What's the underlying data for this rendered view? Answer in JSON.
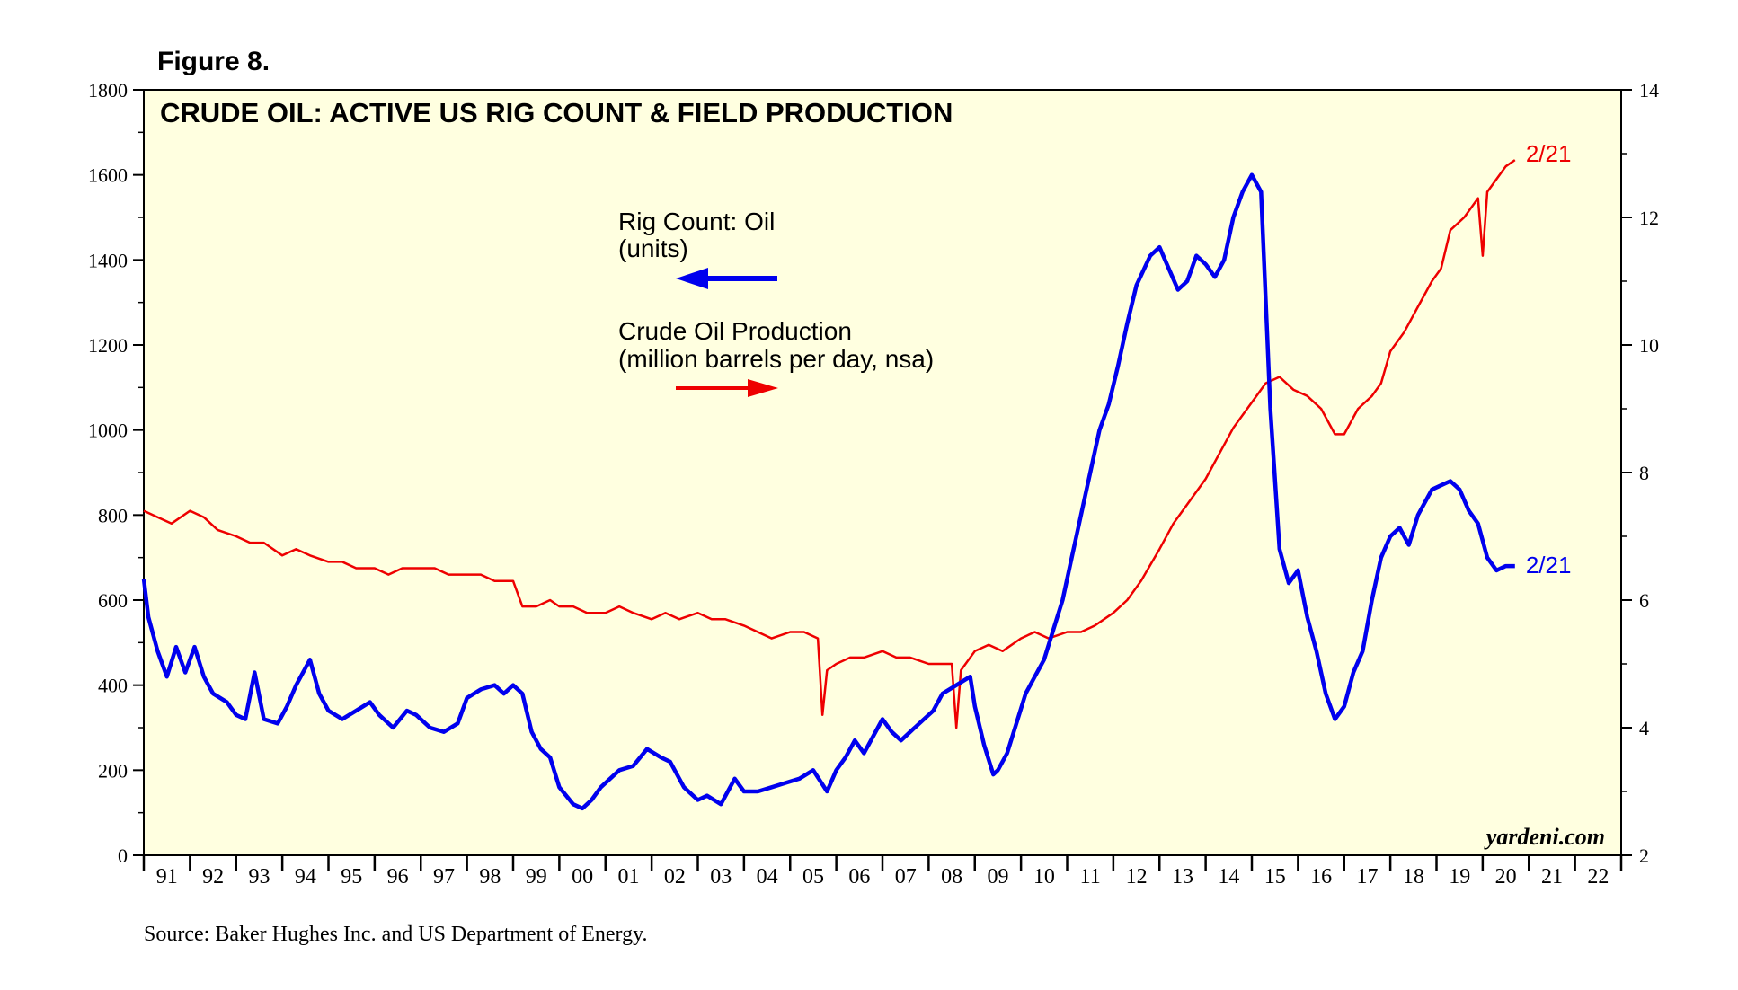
{
  "figure_label": "Figure 8.",
  "colors": {
    "rig_count": "#0000ee",
    "production": "#ee0000",
    "plot_bg": "#ffffe0"
  },
  "chart_data": {
    "type": "line",
    "title": "CRUDE OIL: ACTIVE US RIG COUNT & FIELD PRODUCTION",
    "xlim": [
      1991,
      2023
    ],
    "x_ticks": [
      "91",
      "92",
      "93",
      "94",
      "95",
      "96",
      "97",
      "98",
      "99",
      "00",
      "01",
      "02",
      "03",
      "04",
      "05",
      "06",
      "07",
      "08",
      "09",
      "10",
      "11",
      "12",
      "13",
      "14",
      "15",
      "16",
      "17",
      "18",
      "19",
      "20",
      "21",
      "22"
    ],
    "y_left": {
      "label": "Rig Count: Oil (units)",
      "lim": [
        0,
        1800
      ],
      "ticks": [
        0,
        200,
        400,
        600,
        800,
        1000,
        1200,
        1400,
        1600,
        1800
      ]
    },
    "y_right": {
      "label": "Crude Oil Production (million barrels per day, nsa)",
      "lim": [
        2,
        14
      ],
      "ticks": [
        2,
        4,
        6,
        8,
        10,
        12,
        14
      ]
    },
    "series": [
      {
        "name": "Rig Count: Oil",
        "units": "(units)",
        "axis": "left",
        "end_label": "2/21",
        "points": [
          [
            1991.0,
            650
          ],
          [
            1991.1,
            560
          ],
          [
            1991.3,
            480
          ],
          [
            1991.5,
            420
          ],
          [
            1991.7,
            490
          ],
          [
            1991.9,
            430
          ],
          [
            1992.1,
            490
          ],
          [
            1992.3,
            420
          ],
          [
            1992.5,
            380
          ],
          [
            1992.8,
            360
          ],
          [
            1993.0,
            330
          ],
          [
            1993.2,
            320
          ],
          [
            1993.4,
            430
          ],
          [
            1993.6,
            320
          ],
          [
            1993.9,
            310
          ],
          [
            1994.1,
            350
          ],
          [
            1994.3,
            400
          ],
          [
            1994.6,
            460
          ],
          [
            1994.8,
            380
          ],
          [
            1995.0,
            340
          ],
          [
            1995.3,
            320
          ],
          [
            1995.6,
            340
          ],
          [
            1995.9,
            360
          ],
          [
            1996.1,
            330
          ],
          [
            1996.4,
            300
          ],
          [
            1996.7,
            340
          ],
          [
            1996.9,
            330
          ],
          [
            1997.2,
            300
          ],
          [
            1997.5,
            290
          ],
          [
            1997.8,
            310
          ],
          [
            1998.0,
            370
          ],
          [
            1998.3,
            390
          ],
          [
            1998.6,
            400
          ],
          [
            1998.8,
            380
          ],
          [
            1999.0,
            400
          ],
          [
            1999.2,
            380
          ],
          [
            1999.4,
            290
          ],
          [
            1999.6,
            250
          ],
          [
            1999.8,
            230
          ],
          [
            2000.0,
            160
          ],
          [
            2000.3,
            120
          ],
          [
            2000.5,
            110
          ],
          [
            2000.7,
            130
          ],
          [
            2000.9,
            160
          ],
          [
            2001.1,
            180
          ],
          [
            2001.3,
            200
          ],
          [
            2001.6,
            210
          ],
          [
            2001.9,
            250
          ],
          [
            2002.2,
            230
          ],
          [
            2002.4,
            220
          ],
          [
            2002.7,
            160
          ],
          [
            2003.0,
            130
          ],
          [
            2003.2,
            140
          ],
          [
            2003.5,
            120
          ],
          [
            2003.8,
            180
          ],
          [
            2004.0,
            150
          ],
          [
            2004.3,
            150
          ],
          [
            2004.6,
            160
          ],
          [
            2004.9,
            170
          ],
          [
            2005.2,
            180
          ],
          [
            2005.5,
            200
          ],
          [
            2005.8,
            150
          ],
          [
            2006.0,
            200
          ],
          [
            2006.2,
            230
          ],
          [
            2006.4,
            270
          ],
          [
            2006.6,
            240
          ],
          [
            2006.8,
            280
          ],
          [
            2007.0,
            320
          ],
          [
            2007.2,
            290
          ],
          [
            2007.4,
            270
          ],
          [
            2007.6,
            290
          ],
          [
            2007.9,
            320
          ],
          [
            2008.1,
            340
          ],
          [
            2008.3,
            380
          ],
          [
            2008.6,
            400
          ],
          [
            2008.9,
            420
          ],
          [
            2009.0,
            350
          ],
          [
            2009.2,
            260
          ],
          [
            2009.4,
            190
          ],
          [
            2009.5,
            200
          ],
          [
            2009.7,
            240
          ],
          [
            2009.9,
            310
          ],
          [
            2010.1,
            380
          ],
          [
            2010.3,
            420
          ],
          [
            2010.5,
            460
          ],
          [
            2010.7,
            530
          ],
          [
            2010.9,
            600
          ],
          [
            2011.1,
            700
          ],
          [
            2011.3,
            800
          ],
          [
            2011.5,
            900
          ],
          [
            2011.7,
            1000
          ],
          [
            2011.9,
            1060
          ],
          [
            2012.1,
            1150
          ],
          [
            2012.3,
            1250
          ],
          [
            2012.5,
            1340
          ],
          [
            2012.8,
            1410
          ],
          [
            2013.0,
            1430
          ],
          [
            2013.2,
            1380
          ],
          [
            2013.4,
            1330
          ],
          [
            2013.6,
            1350
          ],
          [
            2013.8,
            1410
          ],
          [
            2014.0,
            1390
          ],
          [
            2014.2,
            1360
          ],
          [
            2014.4,
            1400
          ],
          [
            2014.6,
            1500
          ],
          [
            2014.8,
            1560
          ],
          [
            2015.0,
            1600
          ],
          [
            2015.2,
            1560
          ],
          [
            2015.4,
            1050
          ],
          [
            2015.6,
            720
          ],
          [
            2015.8,
            640
          ],
          [
            2016.0,
            670
          ],
          [
            2016.2,
            560
          ],
          [
            2016.4,
            480
          ],
          [
            2016.6,
            380
          ],
          [
            2016.8,
            320
          ],
          [
            2017.0,
            350
          ],
          [
            2017.2,
            430
          ],
          [
            2017.4,
            480
          ],
          [
            2017.6,
            600
          ],
          [
            2017.8,
            700
          ],
          [
            2018.0,
            750
          ],
          [
            2018.2,
            770
          ],
          [
            2018.4,
            730
          ],
          [
            2018.6,
            800
          ],
          [
            2018.9,
            860
          ],
          [
            2019.1,
            870
          ],
          [
            2019.3,
            880
          ],
          [
            2019.5,
            860
          ],
          [
            2019.7,
            810
          ],
          [
            2019.9,
            780
          ],
          [
            2020.1,
            700
          ],
          [
            2020.3,
            670
          ],
          [
            2020.5,
            680
          ],
          [
            2020.7,
            680
          ]
        ]
      },
      {
        "name": "Crude Oil Production",
        "units": "(million barrels per day, nsa)",
        "axis": "right",
        "end_label": "2/21",
        "points": [
          [
            1991.0,
            7.4
          ],
          [
            1991.3,
            7.3
          ],
          [
            1991.6,
            7.2
          ],
          [
            1992.0,
            7.4
          ],
          [
            1992.3,
            7.3
          ],
          [
            1992.6,
            7.1
          ],
          [
            1993.0,
            7.0
          ],
          [
            1993.3,
            6.9
          ],
          [
            1993.6,
            6.9
          ],
          [
            1994.0,
            6.7
          ],
          [
            1994.3,
            6.8
          ],
          [
            1994.6,
            6.7
          ],
          [
            1995.0,
            6.6
          ],
          [
            1995.3,
            6.6
          ],
          [
            1995.6,
            6.5
          ],
          [
            1996.0,
            6.5
          ],
          [
            1996.3,
            6.4
          ],
          [
            1996.6,
            6.5
          ],
          [
            1997.0,
            6.5
          ],
          [
            1997.3,
            6.5
          ],
          [
            1997.6,
            6.4
          ],
          [
            1998.0,
            6.4
          ],
          [
            1998.3,
            6.4
          ],
          [
            1998.6,
            6.3
          ],
          [
            1999.0,
            6.3
          ],
          [
            1999.2,
            5.9
          ],
          [
            1999.5,
            5.9
          ],
          [
            1999.8,
            6.0
          ],
          [
            2000.0,
            5.9
          ],
          [
            2000.3,
            5.9
          ],
          [
            2000.6,
            5.8
          ],
          [
            2001.0,
            5.8
          ],
          [
            2001.3,
            5.9
          ],
          [
            2001.6,
            5.8
          ],
          [
            2002.0,
            5.7
          ],
          [
            2002.3,
            5.8
          ],
          [
            2002.6,
            5.7
          ],
          [
            2003.0,
            5.8
          ],
          [
            2003.3,
            5.7
          ],
          [
            2003.6,
            5.7
          ],
          [
            2004.0,
            5.6
          ],
          [
            2004.3,
            5.5
          ],
          [
            2004.6,
            5.4
          ],
          [
            2005.0,
            5.5
          ],
          [
            2005.3,
            5.5
          ],
          [
            2005.6,
            5.4
          ],
          [
            2005.7,
            4.2
          ],
          [
            2005.8,
            4.9
          ],
          [
            2006.0,
            5.0
          ],
          [
            2006.3,
            5.1
          ],
          [
            2006.6,
            5.1
          ],
          [
            2007.0,
            5.2
          ],
          [
            2007.3,
            5.1
          ],
          [
            2007.6,
            5.1
          ],
          [
            2008.0,
            5.0
          ],
          [
            2008.3,
            5.0
          ],
          [
            2008.5,
            5.0
          ],
          [
            2008.6,
            4.0
          ],
          [
            2008.7,
            4.9
          ],
          [
            2009.0,
            5.2
          ],
          [
            2009.3,
            5.3
          ],
          [
            2009.6,
            5.2
          ],
          [
            2010.0,
            5.4
          ],
          [
            2010.3,
            5.5
          ],
          [
            2010.6,
            5.4
          ],
          [
            2011.0,
            5.5
          ],
          [
            2011.3,
            5.5
          ],
          [
            2011.6,
            5.6
          ],
          [
            2012.0,
            5.8
          ],
          [
            2012.3,
            6.0
          ],
          [
            2012.6,
            6.3
          ],
          [
            2013.0,
            6.8
          ],
          [
            2013.3,
            7.2
          ],
          [
            2013.6,
            7.5
          ],
          [
            2014.0,
            7.9
          ],
          [
            2014.3,
            8.3
          ],
          [
            2014.6,
            8.7
          ],
          [
            2015.0,
            9.1
          ],
          [
            2015.3,
            9.4
          ],
          [
            2015.6,
            9.5
          ],
          [
            2015.9,
            9.3
          ],
          [
            2016.2,
            9.2
          ],
          [
            2016.5,
            9.0
          ],
          [
            2016.8,
            8.6
          ],
          [
            2017.0,
            8.6
          ],
          [
            2017.3,
            9.0
          ],
          [
            2017.6,
            9.2
          ],
          [
            2017.8,
            9.4
          ],
          [
            2018.0,
            9.9
          ],
          [
            2018.3,
            10.2
          ],
          [
            2018.6,
            10.6
          ],
          [
            2018.9,
            11.0
          ],
          [
            2019.1,
            11.2
          ],
          [
            2019.3,
            11.8
          ],
          [
            2019.6,
            12.0
          ],
          [
            2019.9,
            12.3
          ],
          [
            2020.0,
            11.4
          ],
          [
            2020.1,
            12.4
          ],
          [
            2020.3,
            12.6
          ],
          [
            2020.5,
            12.8
          ],
          [
            2020.7,
            12.9
          ]
        ]
      }
    ],
    "credit": "yardeni.com",
    "source": "Source: Baker Hughes Inc. and US Department of Energy."
  }
}
